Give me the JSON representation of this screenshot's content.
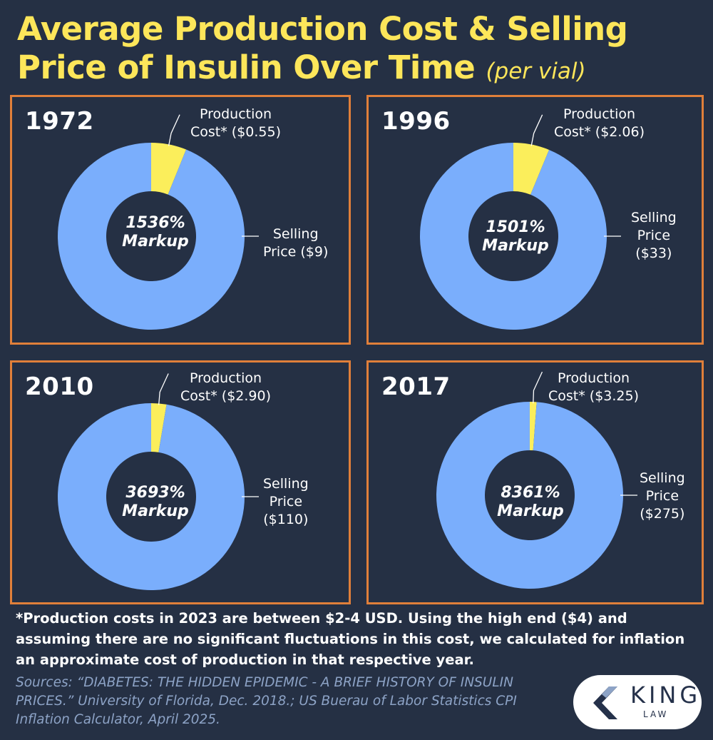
{
  "title": {
    "line1": "Average Production Cost & Selling",
    "line2": "Price of Insulin Over Time",
    "subtitle": "(per vial)"
  },
  "colors": {
    "background": "#253044",
    "title": "#fde65a",
    "production": "#fbee5b",
    "selling": "#7aaefc",
    "panel_border": "#e07f3a",
    "sources": "#8da3c6"
  },
  "chart_data": [
    {
      "type": "pie",
      "title": "1972",
      "slices": [
        {
          "name": "Production Cost*",
          "value": 0.55,
          "label_line1": "Production",
          "label_line2": "Cost* ($0.55)"
        },
        {
          "name": "Selling Price",
          "value": 9,
          "label_line1": "Selling",
          "label_line2": "Price ($9)"
        }
      ],
      "markup_value": "1536%",
      "markup_word": "Markup"
    },
    {
      "type": "pie",
      "title": "1996",
      "slices": [
        {
          "name": "Production Cost*",
          "value": 2.06,
          "label_line1": "Production",
          "label_line2": "Cost* ($2.06)"
        },
        {
          "name": "Selling Price",
          "value": 33,
          "label_line1": "Selling",
          "label_line2": "Price",
          "label_line3": "($33)"
        }
      ],
      "markup_value": "1501%",
      "markup_word": "Markup"
    },
    {
      "type": "pie",
      "title": "2010",
      "slices": [
        {
          "name": "Production Cost*",
          "value": 2.9,
          "label_line1": "Production",
          "label_line2": "Cost* ($2.90)"
        },
        {
          "name": "Selling Price",
          "value": 110,
          "label_line1": "Selling",
          "label_line2": "Price",
          "label_line3": "($110)"
        }
      ],
      "markup_value": "3693%",
      "markup_word": "Markup"
    },
    {
      "type": "pie",
      "title": "2017",
      "slices": [
        {
          "name": "Production Cost*",
          "value": 3.25,
          "label_line1": "Production",
          "label_line2": "Cost* ($3.25)"
        },
        {
          "name": "Selling Price",
          "value": 275,
          "label_line1": "Selling",
          "label_line2": "Price",
          "label_line3": "($275)"
        }
      ],
      "markup_value": "8361%",
      "markup_word": "Markup"
    }
  ],
  "footnote": "*Production costs in 2023 are between $2-4 USD. Using the high end ($4) and assuming there are no significant fluctuations in this cost, we calculated for inflation an approximate cost of production in that respective year.",
  "sources": "Sources: “DIABETES: THE HIDDEN EPIDEMIC - A BRIEF HISTORY OF INSULIN PRICES.” University of Florida, Dec. 2018.; US Buerau of Labor Statistics CPI Inflation Calculator, April 2025.",
  "logo": {
    "word": "KING",
    "sub": "LAW"
  }
}
